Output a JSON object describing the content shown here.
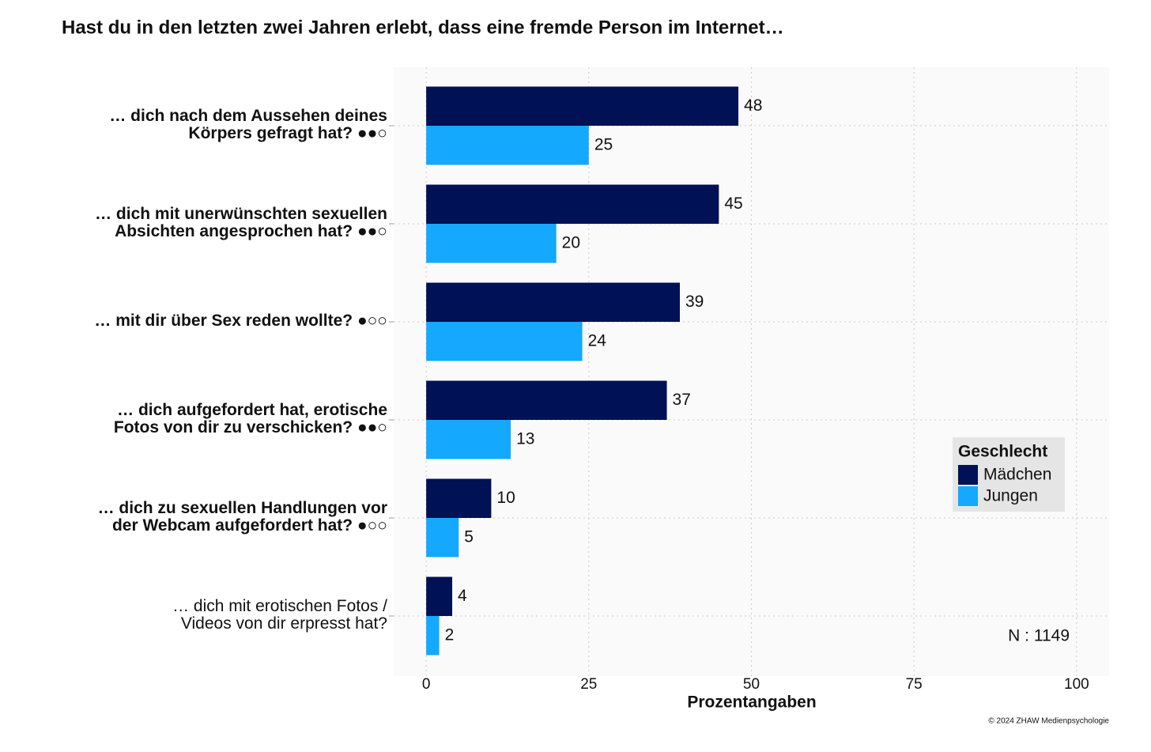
{
  "chart_data": {
    "type": "barh",
    "title": "Hast du in den letzten zwei Jahren erlebt, dass eine fremde Person im Internet…",
    "categories": [
      "… dich nach dem Aussehen deines\nKörpers gefragt hat? ●●○",
      "… dich mit unerwünschten sexuellen\nAbsichten angesprochen hat? ●●○",
      "… mit dir über Sex reden wollte? ●○○",
      "… dich aufgefordert hat, erotische\nFotos von dir zu verschicken? ●●○",
      "… dich zu sexuellen Handlungen vor\nder Webcam aufgefordert hat? ●○○",
      "… dich mit erotischen Fotos /\nVideos von dir erpresst hat?"
    ],
    "category_weights": [
      "bold",
      "bold",
      "bold",
      "bold",
      "bold",
      "normal"
    ],
    "series": [
      {
        "name": "Mädchen",
        "color": "#001155",
        "values": [
          48,
          45,
          39,
          37,
          10,
          4
        ]
      },
      {
        "name": "Jungen",
        "color": "#14a8ff",
        "values": [
          25,
          20,
          24,
          13,
          5,
          2
        ]
      }
    ],
    "xlim": [
      -5,
      105
    ],
    "xticks": [
      0,
      25,
      50,
      75,
      100
    ],
    "xlabel": "Prozentangaben",
    "legend_title": "Geschlecht",
    "legend_position": "right",
    "annotation": "N : 1149",
    "credit": "© 2024 ZHAW Medienpsychologie",
    "grid": true
  }
}
